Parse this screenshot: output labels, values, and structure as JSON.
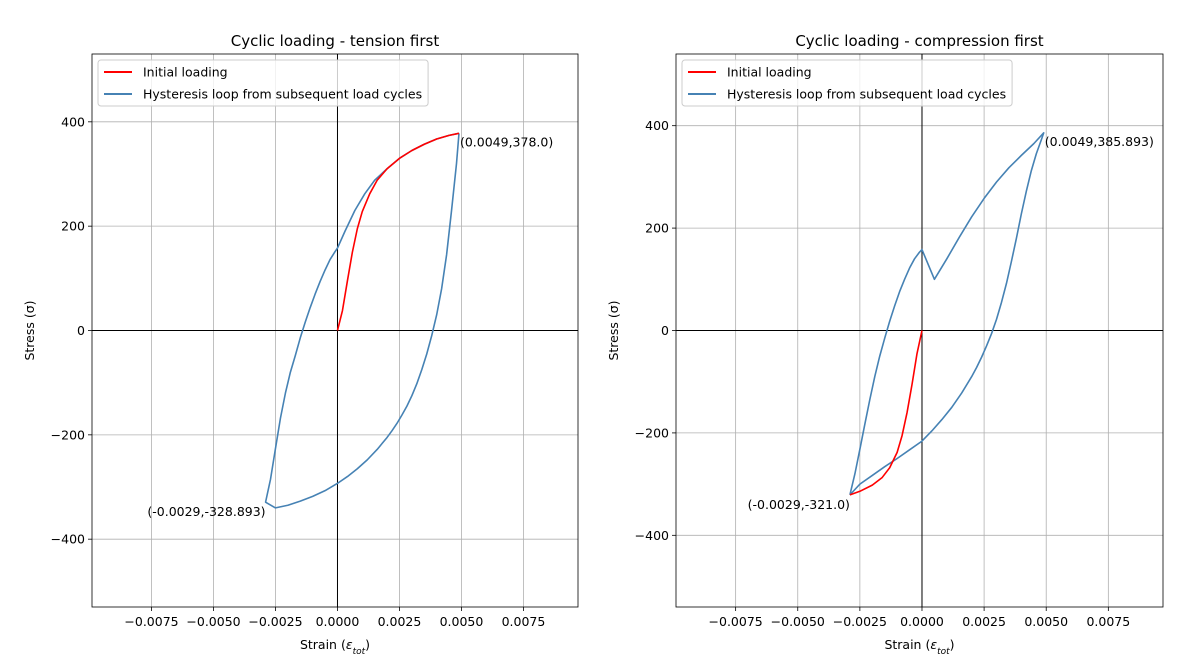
{
  "chart_data": [
    {
      "type": "line",
      "title": "Cyclic loading - tension first",
      "xlabel": "Strain (",
      "xlabel_symbol": "ε",
      "xlabel_sub": "tot",
      "xlabel_end": ")",
      "ylabel": "Stress (σ)",
      "xlim": [
        -0.0099,
        0.0097
      ],
      "ylim": [
        -530,
        530
      ],
      "xticks": [
        -0.0075,
        -0.005,
        -0.0025,
        0.0,
        0.0025,
        0.005,
        0.0075
      ],
      "xtick_labels": [
        "−0.0075",
        "−0.0050",
        "−0.0025",
        "0.0000",
        "0.0025",
        "0.0050",
        "0.0075"
      ],
      "yticks": [
        -400,
        -200,
        0,
        200,
        400
      ],
      "ytick_labels": [
        "−400",
        "−200",
        "0",
        "200",
        "400"
      ],
      "grid": true,
      "legend_position": "upper-left",
      "series": [
        {
          "name": "Initial loading",
          "color": "#ff0000",
          "x": [
            0.0,
            0.0002,
            0.0004,
            0.0006,
            0.0008,
            0.001,
            0.0013,
            0.0016,
            0.002,
            0.0025,
            0.003,
            0.0035,
            0.004,
            0.0045,
            0.0049
          ],
          "y": [
            0,
            38,
            95,
            150,
            195,
            228,
            262,
            288,
            310,
            330,
            345,
            357,
            367,
            374,
            378
          ]
        },
        {
          "name": "Hysteresis loop from subsequent load cycles",
          "color": "#4682b4",
          "x": [
            0.0049,
            0.0048,
            0.0046,
            0.0044,
            0.0042,
            0.004,
            0.0038,
            0.0036,
            0.0034,
            0.0032,
            0.003,
            0.0028,
            0.0026,
            0.0024,
            0.0022,
            0.002,
            0.0016,
            0.0012,
            0.0008,
            0.0004,
            0.0,
            -0.0005,
            -0.001,
            -0.0015,
            -0.002,
            -0.0025,
            -0.0029,
            -0.0027,
            -0.0025,
            -0.0023,
            -0.0021,
            -0.0019,
            -0.0017,
            -0.0015,
            -0.0013,
            -0.0011,
            -0.0009,
            -0.0007,
            -0.0005,
            -0.0003,
            -0.0001,
            0.0,
            0.0003,
            0.0007,
            0.0011,
            0.0015,
            0.002,
            0.0025,
            0.003,
            0.0035,
            0.004,
            0.0045,
            0.0049
          ],
          "y": [
            378,
            320,
            230,
            145,
            80,
            30,
            -10,
            -45,
            -75,
            -102,
            -125,
            -145,
            -162,
            -178,
            -192,
            -205,
            -228,
            -248,
            -265,
            -280,
            -293,
            -307,
            -318,
            -327,
            -335,
            -340,
            -329,
            -285,
            -226,
            -168,
            -120,
            -80,
            -48,
            -14,
            16,
            44,
            70,
            94,
            116,
            136,
            151,
            158,
            190,
            230,
            262,
            288,
            310,
            330,
            345,
            357,
            367,
            374,
            378
          ]
        }
      ],
      "annotations": [
        {
          "text": "(0.0049,378.0)",
          "x": 0.0049,
          "y": 378.0,
          "anchor": "start"
        },
        {
          "text": "(-0.0029,-328.893)",
          "x": -0.0029,
          "y": -328.893,
          "anchor": "end"
        }
      ]
    },
    {
      "type": "line",
      "title": "Cyclic loading - compression first",
      "xlabel": "Strain (",
      "xlabel_symbol": "ε",
      "xlabel_sub": "tot",
      "xlabel_end": ")",
      "ylabel": "Stress (σ)",
      "xlim": [
        -0.0099,
        0.0097
      ],
      "ylim": [
        -540,
        540
      ],
      "xticks": [
        -0.0075,
        -0.005,
        -0.0025,
        0.0,
        0.0025,
        0.005,
        0.0075
      ],
      "xtick_labels": [
        "−0.0075",
        "−0.0050",
        "−0.0025",
        "0.0000",
        "0.0025",
        "0.0050",
        "0.0075"
      ],
      "yticks": [
        -400,
        -200,
        0,
        200,
        400
      ],
      "ytick_labels": [
        "−400",
        "−200",
        "0",
        "200",
        "400"
      ],
      "grid": true,
      "legend_position": "upper-left",
      "series": [
        {
          "name": "Initial loading",
          "color": "#ff0000",
          "x": [
            0.0,
            -0.0002,
            -0.0004,
            -0.0006,
            -0.0008,
            -0.001,
            -0.0013,
            -0.0016,
            -0.002,
            -0.0025,
            -0.0029
          ],
          "y": [
            0,
            -45,
            -105,
            -160,
            -205,
            -238,
            -268,
            -287,
            -302,
            -314,
            -321
          ]
        },
        {
          "name": "Hysteresis loop from subsequent load cycles",
          "color": "#4682b4",
          "x": [
            -0.0029,
            -0.0025,
            -0.002,
            -0.0015,
            -0.001,
            -0.0005,
            0.0,
            0.0004,
            0.0008,
            0.0012,
            0.0016,
            0.002,
            0.0022,
            0.0024,
            0.0026,
            0.0028,
            0.003,
            0.0032,
            0.0034,
            0.0036,
            0.0038,
            0.004,
            0.0042,
            0.0044,
            0.0046,
            0.0048,
            0.0049,
            0.0045,
            0.004,
            0.0035,
            0.003,
            0.0025,
            0.002,
            0.0015,
            0.001,
            0.0005,
            0.0,
            -0.0001,
            -0.0003,
            -0.0005,
            -0.0007,
            -0.0009,
            -0.0011,
            -0.0013,
            -0.0015,
            -0.0017,
            -0.0019,
            -0.0021,
            -0.0023,
            -0.0025,
            -0.0027,
            -0.0029
          ],
          "y": [
            -321,
            -300,
            -283,
            -266,
            -250,
            -233,
            -216,
            -196,
            -174,
            -150,
            -122,
            -90,
            -72,
            -52,
            -30,
            -6,
            22,
            55,
            92,
            135,
            180,
            228,
            272,
            312,
            345,
            372,
            386,
            365,
            342,
            318,
            290,
            258,
            222,
            182,
            140,
            100,
            158,
            153,
            140,
            122,
            100,
            76,
            48,
            18,
            -15,
            -50,
            -90,
            -135,
            -183,
            -232,
            -280,
            -321
          ]
        }
      ],
      "annotations": [
        {
          "text": "(0.0049,385.893)",
          "x": 0.0049,
          "y": 385.893,
          "anchor": "start"
        },
        {
          "text": "(-0.0029,-321.0)",
          "x": -0.0029,
          "y": -321.0,
          "anchor": "end"
        }
      ]
    }
  ]
}
